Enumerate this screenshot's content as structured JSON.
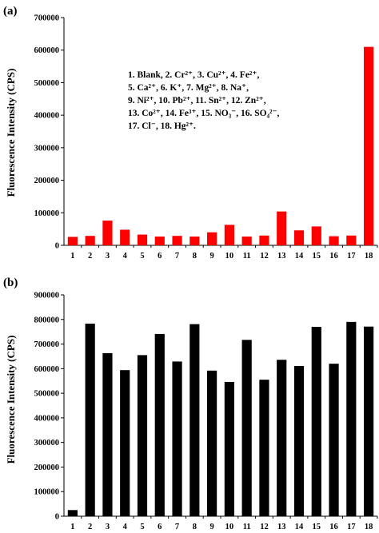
{
  "chart_data": [
    {
      "type": "bar",
      "panel_label": "(a)",
      "ylabel": "Fluorescence Intensity (CPS)",
      "xlabel": "",
      "categories": [
        "1",
        "2",
        "3",
        "4",
        "5",
        "6",
        "7",
        "8",
        "9",
        "10",
        "11",
        "12",
        "13",
        "14",
        "15",
        "16",
        "17",
        "18"
      ],
      "values": [
        26000,
        29000,
        76000,
        48000,
        33000,
        27000,
        29000,
        27000,
        40000,
        63000,
        27000,
        30000,
        104000,
        46000,
        58000,
        28000,
        30000,
        610000
      ],
      "ylim": [
        0,
        700000
      ],
      "yticks": [
        "0",
        "100000",
        "200000",
        "300000",
        "400000",
        "500000",
        "600000",
        "700000"
      ],
      "bar_color": "#ff0000",
      "grid": false,
      "annotation_lines": [
        "1. Blank, 2. Cr²⁺, 3. Cu²⁺, 4. Fe²⁺,",
        "5. Ca²⁺, 6. K⁺, 7. Mg²⁺, 8. Na⁺,",
        "9. Ni²⁺, 10. Pb²⁺, 11. Sn²⁺, 12. Zn²⁺,",
        "13. Co²⁺, 14. Fe³⁺, 15. NO₃⁻, 16. SO₄²⁻,",
        "17. Cl⁻, 18. Hg²⁺."
      ]
    },
    {
      "type": "bar",
      "panel_label": "(b)",
      "ylabel": "Fluorescence Intensity (CPS)",
      "xlabel": "",
      "categories": [
        "1",
        "2",
        "3",
        "4",
        "5",
        "6",
        "7",
        "8",
        "9",
        "10",
        "11",
        "12",
        "13",
        "14",
        "15",
        "16",
        "17",
        "18"
      ],
      "values": [
        25000,
        783000,
        663000,
        594000,
        655000,
        741000,
        629000,
        781000,
        592000,
        546000,
        717000,
        555000,
        636000,
        611000,
        770000,
        620000,
        790000,
        771000
      ],
      "ylim": [
        0,
        900000
      ],
      "yticks": [
        "0",
        "100000",
        "200000",
        "300000",
        "400000",
        "500000",
        "600000",
        "700000",
        "800000",
        "900000"
      ],
      "bar_color": "#000000",
      "grid": false
    }
  ]
}
